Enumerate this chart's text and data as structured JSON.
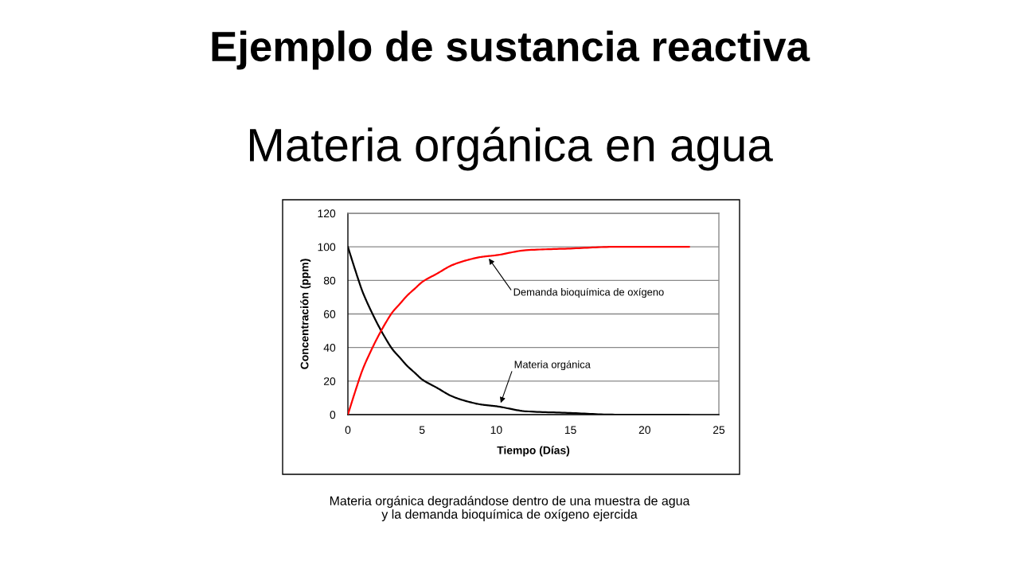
{
  "chart_data": {
    "type": "line",
    "title": "Ejemplo de sustancia reactiva",
    "subtitle": "Materia orgánica en agua",
    "xlabel": "Tiempo (Días)",
    "ylabel": "Concentración (ppm)",
    "x": [
      0,
      0.5,
      1,
      1.5,
      2,
      2.5,
      3,
      3.5,
      4,
      4.5,
      5,
      6,
      7,
      8,
      9,
      10,
      12,
      15,
      18,
      23
    ],
    "series": [
      {
        "color": "#000000",
        "values": [
          100,
          86,
          73,
          63,
          54,
          46,
          39,
          34,
          29,
          25,
          21,
          16,
          11,
          8,
          6,
          5,
          2,
          1,
          0,
          0
        ]
      },
      {
        "color": "#ff0000",
        "values": [
          0,
          14,
          27,
          37,
          46,
          54,
          61,
          66,
          71,
          75,
          79,
          84,
          89,
          92,
          94,
          95,
          98,
          99,
          100,
          100
        ]
      }
    ],
    "xlim": [
      0,
      25
    ],
    "xticks": [
      0,
      5,
      10,
      15,
      20,
      25
    ],
    "ylim": [
      0,
      120
    ],
    "yticks": [
      0,
      20,
      40,
      60,
      80,
      100,
      120
    ],
    "grid": "y",
    "line_style": "solid",
    "annotations": [
      {
        "text": "Demanda bioquímica de oxígeno",
        "x": 9.5,
        "y": 93
      },
      {
        "text": "Materia orgánica",
        "x": 10.3,
        "y": 7
      },
      "Materia orgánica degradándose dentro de una muestra de agua\ny la demanda bioquímica de oxígeno ejercida"
    ]
  }
}
